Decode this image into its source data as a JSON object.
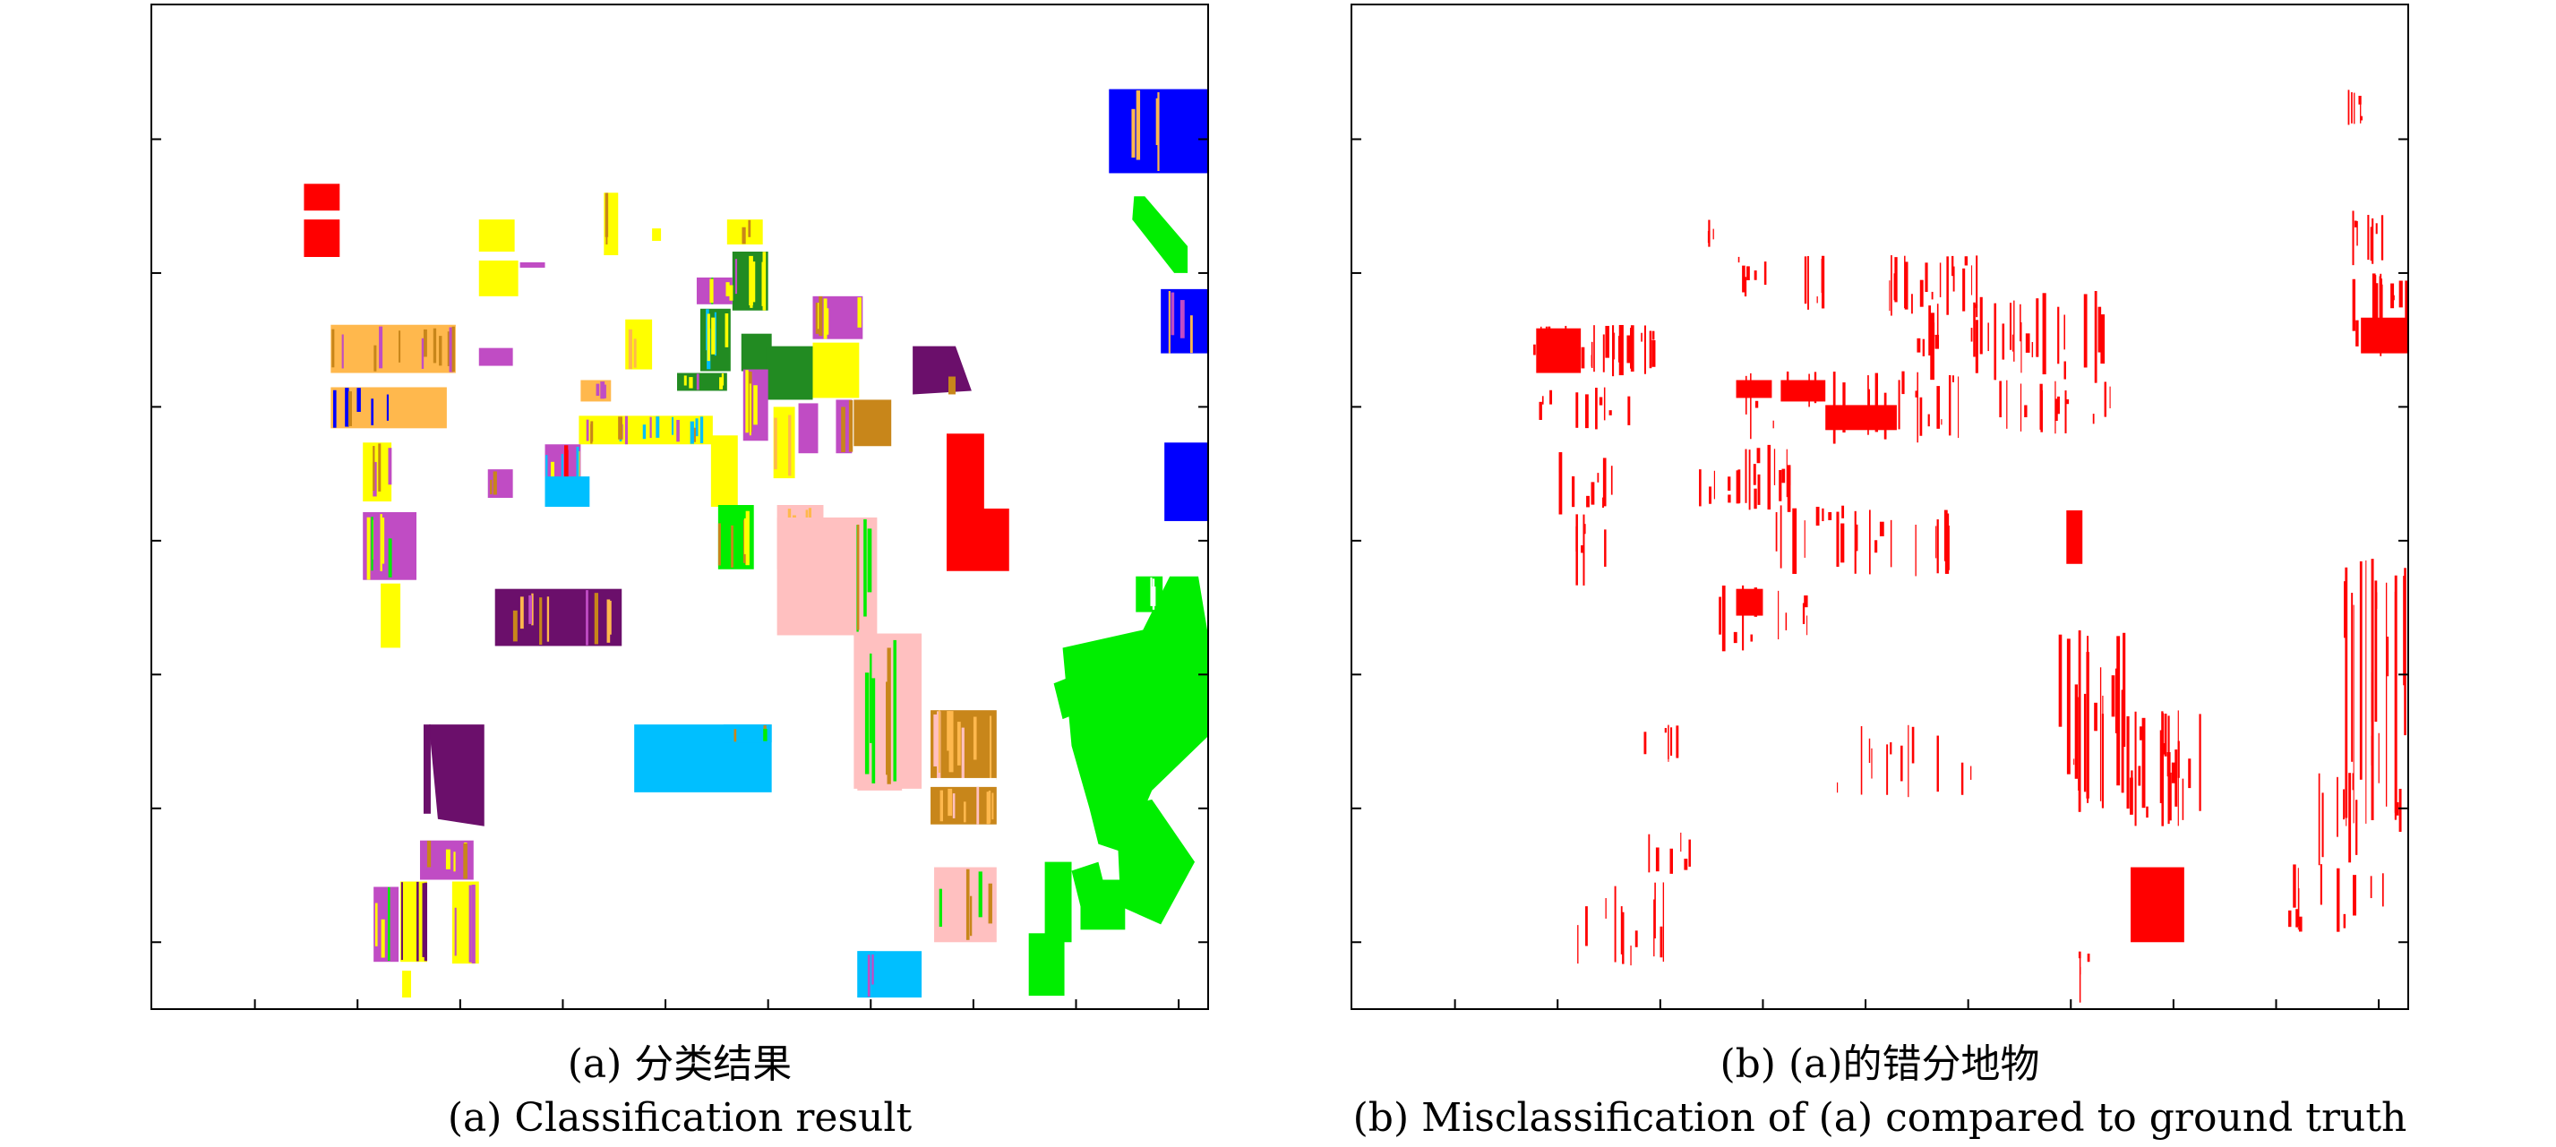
{
  "captions": {
    "a_cn": "(a) 分类结果",
    "a_en": "(a) Classification result",
    "b_cn": "(b) (a)的错分地物",
    "b_en": "(b) Misclassification of (a) compared to ground truth"
  },
  "colors": {
    "red": "#ff0000",
    "blue": "#0000ff",
    "green": "#00ee00",
    "yellow": "#ffff00",
    "orange": "#ffb84d",
    "magenta": "#c04cc4",
    "dark_green": "#228b22",
    "purple": "#6b0f6b",
    "cyan": "#00bfff",
    "pink": "#ffc0c0",
    "brown": "#c8861a",
    "error_red": "#ff0000"
  }
}
